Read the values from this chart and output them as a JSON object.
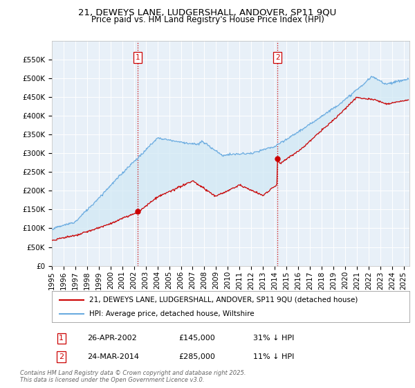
{
  "title": "21, DEWEYS LANE, LUDGERSHALL, ANDOVER, SP11 9QU",
  "subtitle": "Price paid vs. HM Land Registry's House Price Index (HPI)",
  "ylabel_ticks": [
    "£0",
    "£50K",
    "£100K",
    "£150K",
    "£200K",
    "£250K",
    "£300K",
    "£350K",
    "£400K",
    "£450K",
    "£500K",
    "£550K"
  ],
  "ytick_values": [
    0,
    50000,
    100000,
    150000,
    200000,
    250000,
    300000,
    350000,
    400000,
    450000,
    500000,
    550000
  ],
  "ylim": [
    0,
    600000
  ],
  "xlim_start": 1995.0,
  "xlim_end": 2025.5,
  "hpi_color": "#6aabe0",
  "price_color": "#cc0000",
  "fill_color": "#d0e8f5",
  "vline_color": "#cc0000",
  "vline_style": ":",
  "marker1_date": 2002.32,
  "marker1_price": 145000,
  "marker2_date": 2014.23,
  "marker2_price": 285000,
  "legend_line1": "21, DEWEYS LANE, LUDGERSHALL, ANDOVER, SP11 9QU (detached house)",
  "legend_line2": "HPI: Average price, detached house, Wiltshire",
  "annot1_label": "1",
  "annot1_date": "26-APR-2002",
  "annot1_price": "£145,000",
  "annot1_hpi": "31% ↓ HPI",
  "annot2_label": "2",
  "annot2_date": "24-MAR-2014",
  "annot2_price": "£285,000",
  "annot2_hpi": "11% ↓ HPI",
  "footer": "Contains HM Land Registry data © Crown copyright and database right 2025.\nThis data is licensed under the Open Government Licence v3.0.",
  "title_fontsize": 9.5,
  "subtitle_fontsize": 8.5,
  "axis_fontsize": 7.5,
  "legend_fontsize": 7.5,
  "annot_fontsize": 8,
  "footer_fontsize": 6,
  "background_color": "#e8f0f8"
}
